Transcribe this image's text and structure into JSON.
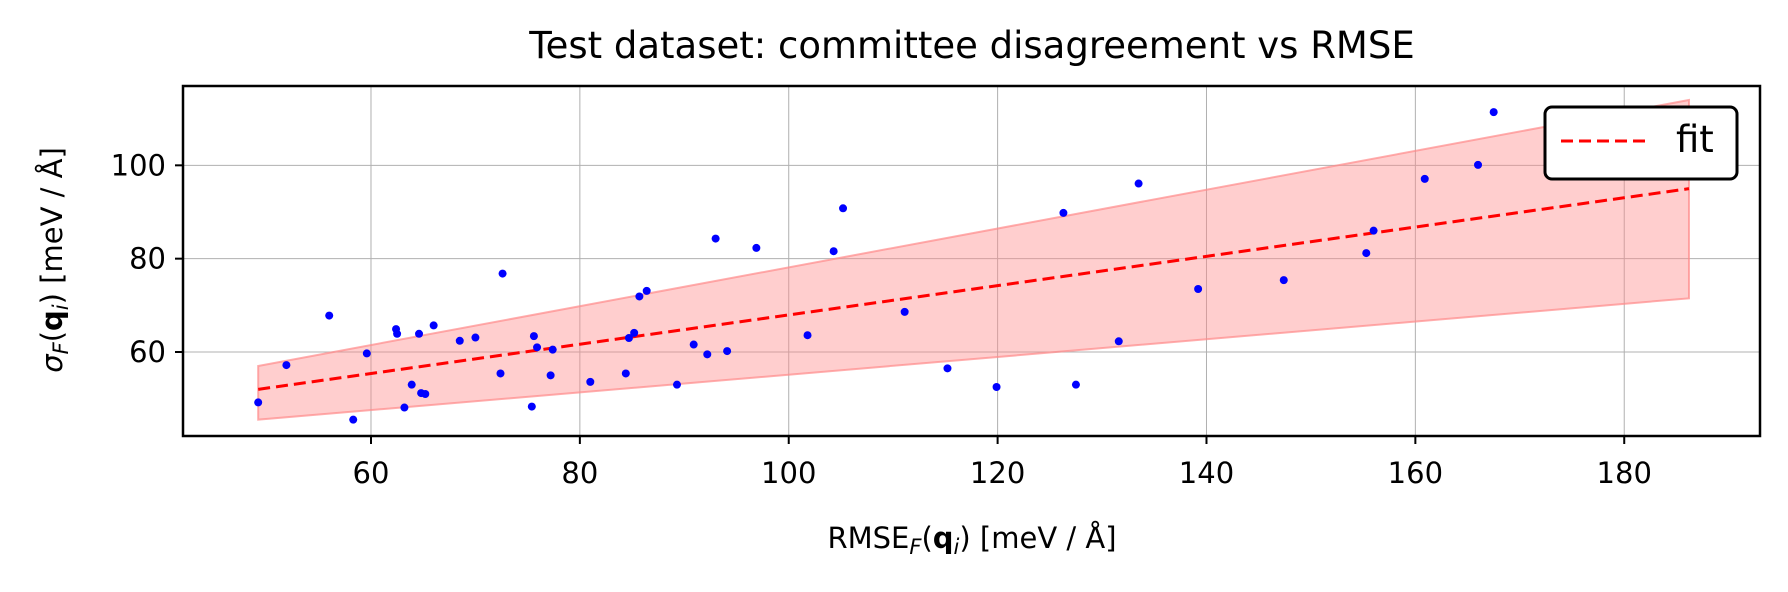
{
  "chart_data": {
    "type": "scatter",
    "title": "Test dataset: committee disagreement vs RMSE",
    "xlabel": {
      "base": "RMSE",
      "sub": "F",
      "q": "q",
      "qsub": "i",
      "unit": " [meV / Å]"
    },
    "ylabel": {
      "base": "σ",
      "sub": "F",
      "q": "q",
      "qsub": "i",
      "unit": " [meV / Å]"
    },
    "xlim": [
      42,
      193
    ],
    "ylim": [
      42,
      117
    ],
    "xticks": [
      60,
      80,
      100,
      120,
      140,
      160,
      180
    ],
    "yticks": [
      60,
      80,
      100
    ],
    "grid": true,
    "legend": {
      "position": "upper right",
      "entries": [
        "fit"
      ]
    },
    "colors": {
      "points": "#0000ff",
      "fit": "#ff0000",
      "band": "#ff8a8a"
    },
    "fit": {
      "x": [
        49.2,
        186.2
      ],
      "y": [
        52.0,
        95.0
      ]
    },
    "band": {
      "x": [
        49.2,
        186.2
      ],
      "upper": [
        57.0,
        114.0
      ],
      "lower": [
        45.5,
        71.5
      ]
    },
    "points": {
      "x": [
        49.2,
        51.9,
        56.0,
        58.3,
        59.6,
        62.4,
        62.5,
        63.2,
        63.9,
        64.6,
        64.8,
        65.2,
        66.0,
        68.5,
        70.0,
        72.4,
        72.6,
        75.4,
        75.6,
        75.9,
        77.2,
        77.4,
        81.0,
        84.4,
        84.7,
        85.2,
        85.7,
        86.4,
        89.3,
        90.9,
        92.2,
        93.0,
        94.1,
        96.9,
        101.8,
        104.3,
        105.2,
        111.1,
        115.2,
        119.9,
        126.3,
        127.5,
        131.6,
        133.5,
        139.2,
        147.4,
        155.3,
        156.0,
        160.9,
        166.0,
        167.5
      ],
      "y": [
        49.2,
        57.2,
        67.8,
        45.5,
        59.7,
        64.9,
        63.9,
        48.1,
        53.0,
        63.9,
        51.2,
        51.0,
        65.7,
        62.4,
        63.1,
        55.4,
        76.8,
        48.3,
        63.4,
        61.0,
        55.0,
        60.5,
        53.6,
        55.4,
        63.0,
        64.1,
        71.9,
        73.1,
        53.0,
        61.6,
        59.5,
        84.3,
        60.2,
        82.3,
        63.6,
        81.6,
        90.8,
        68.6,
        56.5,
        52.5,
        89.8,
        53.0,
        62.3,
        96.1,
        73.5,
        75.4,
        81.2,
        86.0,
        97.1,
        100.1,
        111.4
      ]
    }
  }
}
